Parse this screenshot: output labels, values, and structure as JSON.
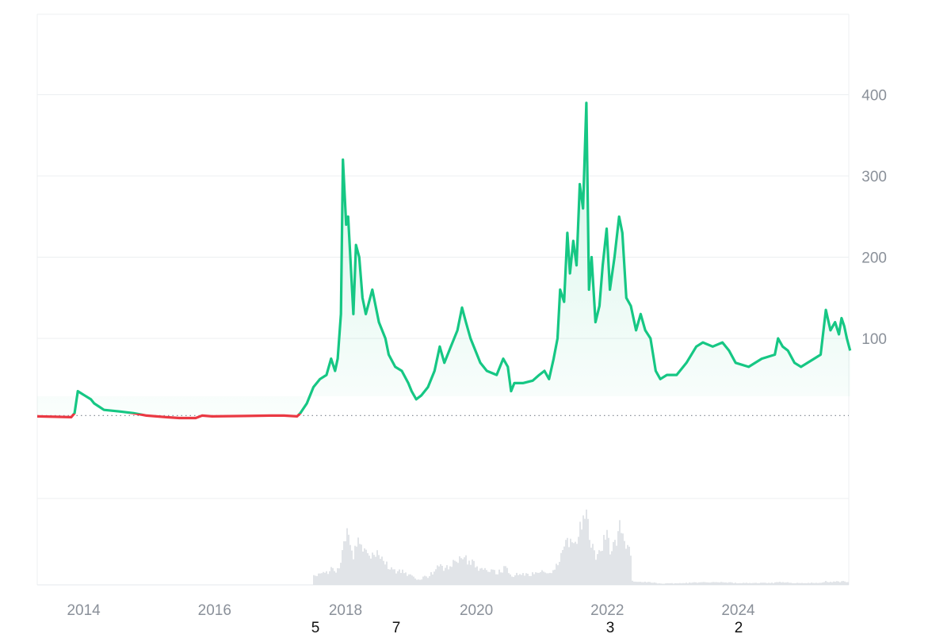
{
  "chart_data": {
    "type": "line",
    "title": "",
    "xlabel": "",
    "ylabel": "",
    "x_ticks": [
      "2014",
      "2016",
      "2018",
      "2020",
      "2022",
      "2024"
    ],
    "y_ticks": [
      100,
      200,
      300,
      400
    ],
    "xlim": [
      2013.33,
      2025.25
    ],
    "ylim": [
      0,
      500
    ],
    "baseline": 5,
    "grid": true,
    "legend": "none",
    "colors": {
      "above": "#16c784",
      "below": "#ea3943",
      "grid": "#eceff1",
      "volume": "#d7dbe0"
    },
    "stray_labels": [
      "5",
      "7",
      "3",
      "2"
    ],
    "series": [
      {
        "values": [
          [
            2013.33,
            4
          ],
          [
            2013.6,
            3.5
          ],
          [
            2013.85,
            3
          ],
          [
            2013.9,
            8
          ],
          [
            2013.95,
            35
          ],
          [
            2014.05,
            30
          ],
          [
            2014.15,
            25
          ],
          [
            2014.2,
            20
          ],
          [
            2014.35,
            12
          ],
          [
            2014.6,
            10
          ],
          [
            2014.8,
            8
          ],
          [
            2015.0,
            5
          ],
          [
            2015.3,
            3
          ],
          [
            2015.5,
            2
          ],
          [
            2015.75,
            2
          ],
          [
            2015.85,
            5
          ],
          [
            2016.0,
            4
          ],
          [
            2016.5,
            4.5
          ],
          [
            2016.9,
            5
          ],
          [
            2017.1,
            5
          ],
          [
            2017.3,
            4
          ],
          [
            2017.35,
            8
          ],
          [
            2017.45,
            20
          ],
          [
            2017.55,
            40
          ],
          [
            2017.65,
            50
          ],
          [
            2017.75,
            55
          ],
          [
            2017.82,
            75
          ],
          [
            2017.88,
            60
          ],
          [
            2017.92,
            75
          ],
          [
            2017.97,
            130
          ],
          [
            2018.0,
            320
          ],
          [
            2018.05,
            240
          ],
          [
            2018.08,
            250
          ],
          [
            2018.12,
            190
          ],
          [
            2018.16,
            130
          ],
          [
            2018.2,
            215
          ],
          [
            2018.25,
            200
          ],
          [
            2018.3,
            150
          ],
          [
            2018.35,
            130
          ],
          [
            2018.45,
            160
          ],
          [
            2018.55,
            120
          ],
          [
            2018.65,
            100
          ],
          [
            2018.7,
            80
          ],
          [
            2018.8,
            65
          ],
          [
            2018.9,
            60
          ],
          [
            2019.0,
            45
          ],
          [
            2019.05,
            35
          ],
          [
            2019.12,
            25
          ],
          [
            2019.2,
            30
          ],
          [
            2019.3,
            40
          ],
          [
            2019.4,
            60
          ],
          [
            2019.48,
            90
          ],
          [
            2019.55,
            70
          ],
          [
            2019.65,
            90
          ],
          [
            2019.75,
            110
          ],
          [
            2019.82,
            138
          ],
          [
            2019.88,
            120
          ],
          [
            2019.95,
            100
          ],
          [
            2020.1,
            70
          ],
          [
            2020.2,
            60
          ],
          [
            2020.35,
            55
          ],
          [
            2020.45,
            75
          ],
          [
            2020.52,
            65
          ],
          [
            2020.57,
            35
          ],
          [
            2020.62,
            45
          ],
          [
            2020.75,
            45
          ],
          [
            2020.9,
            48
          ],
          [
            2021.0,
            55
          ],
          [
            2021.08,
            60
          ],
          [
            2021.15,
            50
          ],
          [
            2021.22,
            75
          ],
          [
            2021.28,
            100
          ],
          [
            2021.32,
            160
          ],
          [
            2021.38,
            145
          ],
          [
            2021.43,
            230
          ],
          [
            2021.47,
            180
          ],
          [
            2021.52,
            220
          ],
          [
            2021.57,
            190
          ],
          [
            2021.62,
            290
          ],
          [
            2021.67,
            260
          ],
          [
            2021.72,
            390
          ],
          [
            2021.76,
            160
          ],
          [
            2021.8,
            200
          ],
          [
            2021.86,
            120
          ],
          [
            2021.92,
            140
          ],
          [
            2021.97,
            190
          ],
          [
            2022.03,
            235
          ],
          [
            2022.08,
            160
          ],
          [
            2022.15,
            200
          ],
          [
            2022.22,
            250
          ],
          [
            2022.27,
            230
          ],
          [
            2022.33,
            150
          ],
          [
            2022.4,
            140
          ],
          [
            2022.48,
            110
          ],
          [
            2022.55,
            130
          ],
          [
            2022.62,
            110
          ],
          [
            2022.7,
            100
          ],
          [
            2022.78,
            60
          ],
          [
            2022.85,
            50
          ],
          [
            2022.95,
            55
          ],
          [
            2023.1,
            55
          ],
          [
            2023.25,
            70
          ],
          [
            2023.4,
            90
          ],
          [
            2023.5,
            95
          ],
          [
            2023.65,
            90
          ],
          [
            2023.8,
            95
          ],
          [
            2023.9,
            85
          ],
          [
            2024.0,
            70
          ],
          [
            2024.2,
            65
          ],
          [
            2024.4,
            75
          ],
          [
            2024.6,
            80
          ],
          [
            2024.65,
            100
          ],
          [
            2024.72,
            90
          ],
          [
            2024.8,
            85
          ],
          [
            2024.9,
            70
          ],
          [
            2025.0,
            65
          ],
          [
            2025.1,
            70
          ],
          [
            2025.2,
            75
          ],
          [
            2025.3,
            80
          ],
          [
            2025.38,
            135
          ],
          [
            2025.45,
            110
          ],
          [
            2025.52,
            120
          ],
          [
            2025.58,
            105
          ],
          [
            2025.62,
            125
          ],
          [
            2025.66,
            115
          ],
          [
            2025.7,
            100
          ],
          [
            2025.75,
            85
          ]
        ]
      }
    ]
  }
}
